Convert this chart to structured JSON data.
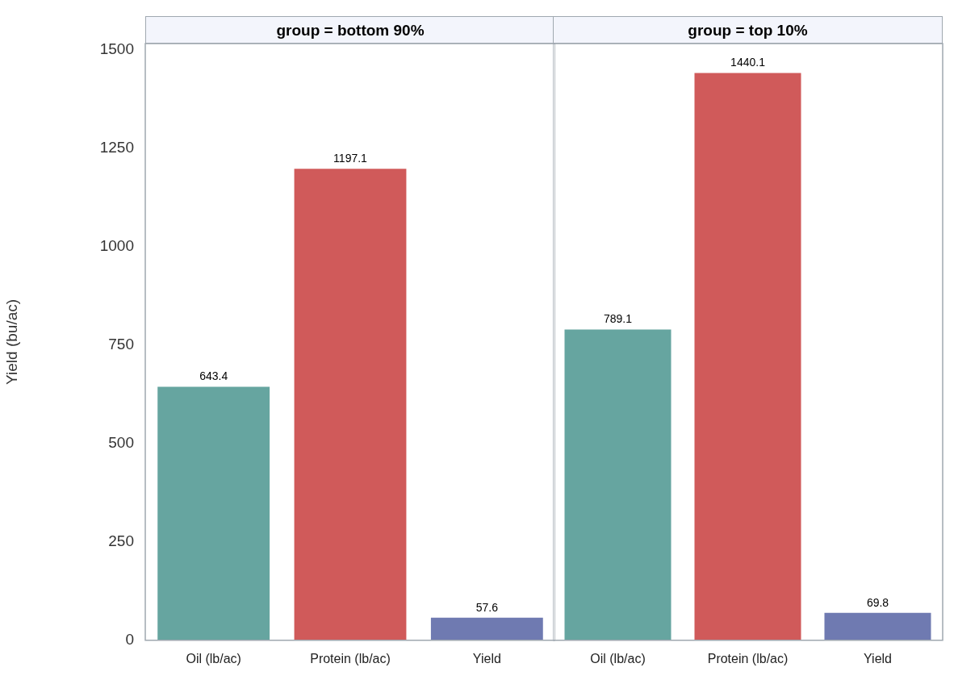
{
  "chart_data": [
    {
      "type": "bar",
      "title": "group = bottom 90%",
      "ylabel": "Yield (bu/ac)",
      "categories": [
        "Oil (lb/ac)",
        "Protein (lb/ac)",
        "Yield"
      ],
      "values": [
        643.4,
        1197.1,
        57.6
      ],
      "colors": [
        "#66a5a0",
        "#d05a5a",
        "#6f7ab1"
      ],
      "ylim": [
        0,
        1515
      ],
      "yticks": [
        0,
        250,
        500,
        750,
        1000,
        1250,
        1500
      ],
      "data_labels": true,
      "grid": false
    },
    {
      "type": "bar",
      "title": "group = top 10%",
      "categories": [
        "Oil (lb/ac)",
        "Protein (lb/ac)",
        "Yield"
      ],
      "values": [
        789.1,
        1440.1,
        69.8
      ],
      "colors": [
        "#66a5a0",
        "#d05a5a",
        "#6f7ab1"
      ],
      "ylim": [
        0,
        1515
      ],
      "yticks": [
        0,
        250,
        500,
        750,
        1000,
        1250,
        1500
      ],
      "data_labels": true,
      "grid": false,
      "tick_labels": "x"
    }
  ]
}
